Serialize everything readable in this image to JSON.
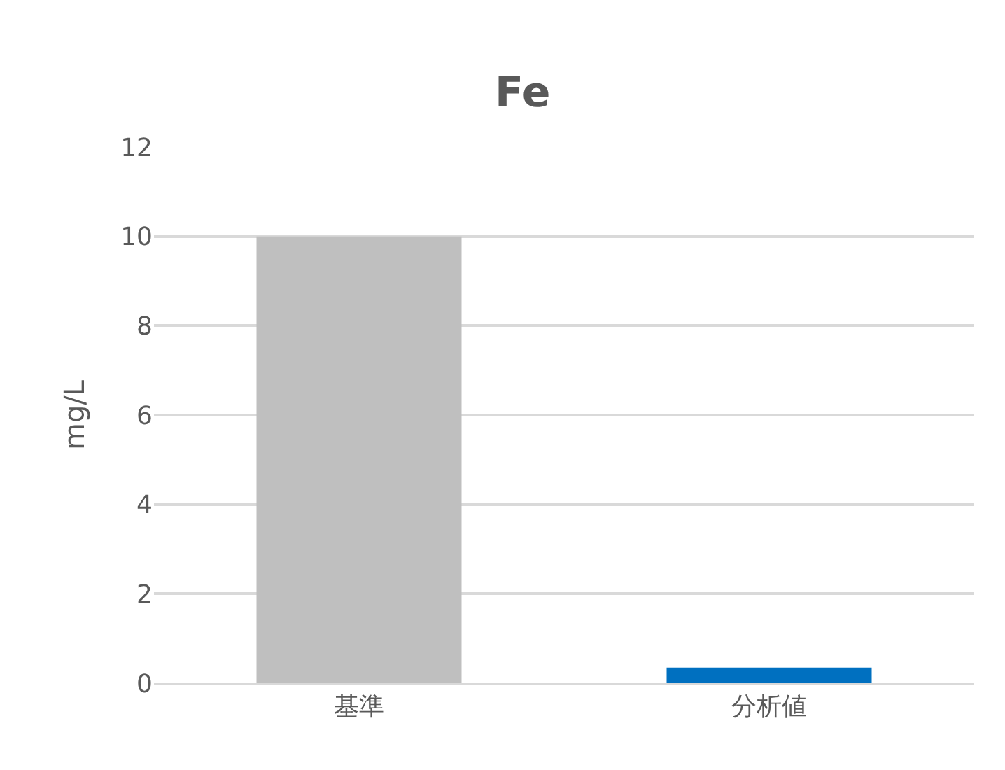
{
  "chart_data": {
    "type": "bar",
    "title": "Fe",
    "ylabel": "mg/L",
    "categories": [
      "基準",
      "分析値"
    ],
    "values": [
      10,
      0.35
    ],
    "colors": [
      "#bfbfbf",
      "#0070c0"
    ],
    "ylim": [
      0,
      12
    ],
    "yticks": [
      0,
      2,
      4,
      6,
      8,
      10,
      12
    ],
    "grid": "y",
    "legend": false
  }
}
